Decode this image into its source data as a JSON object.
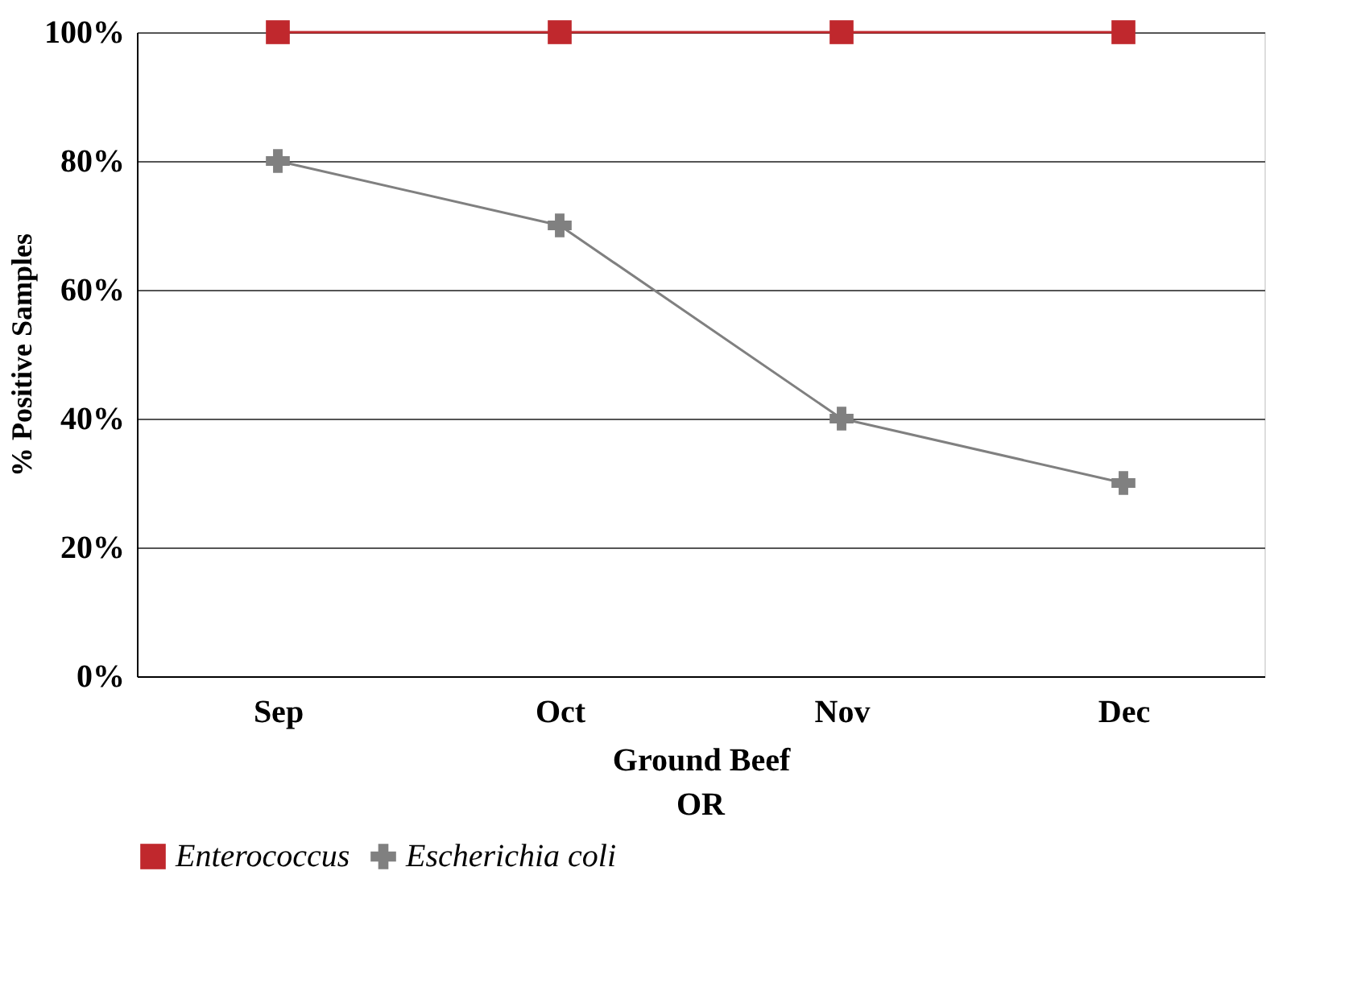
{
  "chart_data": {
    "type": "line",
    "ylabel": "% Positive Samples",
    "xlabel": "Ground Beef",
    "annotations": [
      "OR"
    ],
    "categories": [
      "Sep",
      "Oct",
      "Nov",
      "Dec"
    ],
    "series": [
      {
        "name": "Enterococcus",
        "color": "#c0282d",
        "marker": "square",
        "values": [
          100,
          100,
          100,
          100
        ]
      },
      {
        "name": "Escherichia coli",
        "color": "#808080",
        "marker": "cross",
        "values": [
          80,
          70,
          40,
          30
        ]
      }
    ],
    "ylim": [
      0,
      100
    ],
    "yticks": [
      {
        "value": 0,
        "label": "0%"
      },
      {
        "value": 20,
        "label": "20%"
      },
      {
        "value": 40,
        "label": "40%"
      },
      {
        "value": 60,
        "label": "60%"
      },
      {
        "value": 80,
        "label": "80%"
      },
      {
        "value": 100,
        "label": "100%"
      }
    ],
    "grid": "y",
    "legend": "bottom"
  }
}
